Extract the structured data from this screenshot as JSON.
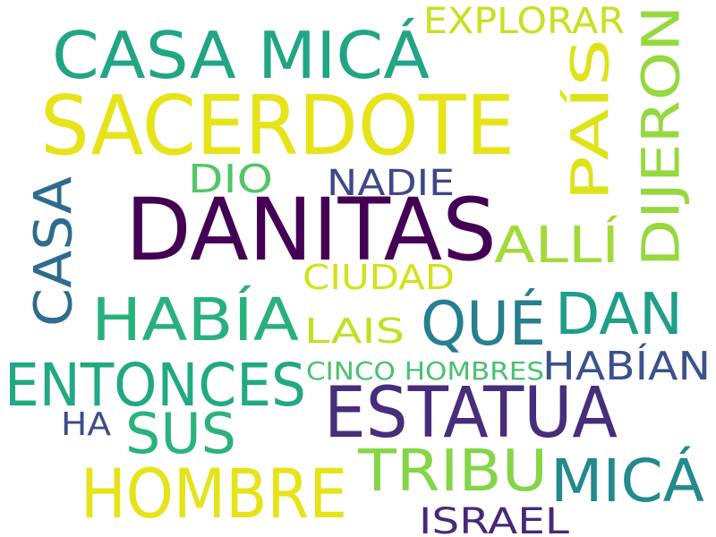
{
  "words": [
    {
      "text": "DANITAS",
      "color": "#440154"
    },
    {
      "text": "SACERDOTE",
      "color": "#e6e419"
    },
    {
      "text": "CASA MICÁ",
      "color": "#21a585"
    },
    {
      "text": "ESTATUA",
      "color": "#472d7b"
    },
    {
      "text": "HOMBRE",
      "color": "#e6e419"
    },
    {
      "text": "ENTONCES",
      "color": "#22a884"
    },
    {
      "text": "HABÍA",
      "color": "#2ab07f"
    },
    {
      "text": "MICÁ",
      "color": "#238a8d"
    },
    {
      "text": "DIJERON",
      "color": "#95d840"
    },
    {
      "text": "PAÍS",
      "color": "#dde318"
    },
    {
      "text": "CASA",
      "color": "#2f6b8e"
    },
    {
      "text": "QUÉ",
      "color": "#277f8e"
    },
    {
      "text": "DAN",
      "color": "#1f9e89"
    },
    {
      "text": "TRIBU",
      "color": "#86d549"
    },
    {
      "text": "SUS",
      "color": "#2db27d"
    },
    {
      "text": "ALLÍ",
      "color": "#a2da37"
    },
    {
      "text": "EXPLORAR",
      "color": "#c8e020"
    },
    {
      "text": "NADIE",
      "color": "#3e4989"
    },
    {
      "text": "DIO",
      "color": "#54c568"
    },
    {
      "text": "CIUDAD",
      "color": "#d2e21b"
    },
    {
      "text": "LAIS",
      "color": "#c2df23"
    },
    {
      "text": "HABÍAN",
      "color": "#3b528b"
    },
    {
      "text": "CINCO HOMBRES",
      "color": "#4ac16d"
    },
    {
      "text": "HA",
      "color": "#3e4c8a"
    },
    {
      "text": "ISRAEL",
      "color": "#482878"
    }
  ]
}
